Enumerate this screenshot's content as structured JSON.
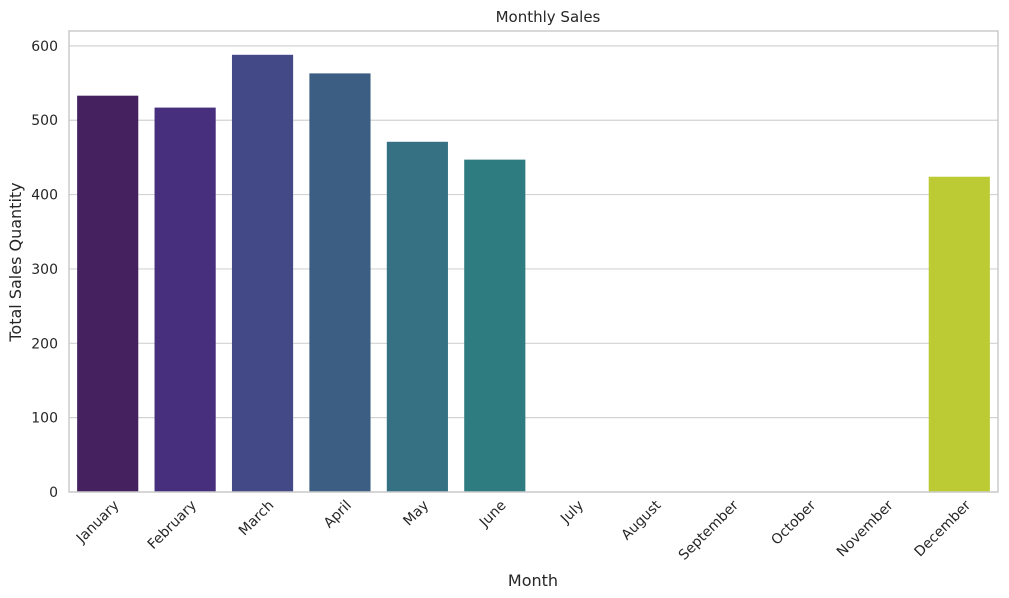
{
  "chart_data": {
    "type": "bar",
    "title": "Monthly Sales",
    "xlabel": "Month",
    "ylabel": "Total Sales Quantity",
    "categories": [
      "January",
      "February",
      "March",
      "April",
      "May",
      "June",
      "July",
      "August",
      "September",
      "October",
      "November",
      "December"
    ],
    "values": [
      533,
      517,
      588,
      563,
      471,
      447,
      0,
      0,
      0,
      0,
      0,
      424
    ],
    "ylim": [
      0,
      620
    ],
    "yticks": [
      "0",
      "100",
      "200",
      "300",
      "400",
      "500",
      "600"
    ],
    "grid": "horizontal",
    "palette": [
      "#46215f",
      "#472f7d",
      "#424986",
      "#3b5e82",
      "#357083",
      "#2e7c80",
      "#26897e",
      "#27a27c",
      "#4cbc6e",
      "#7fcf55",
      "#b1dc38",
      "#bccb34"
    ],
    "axes_edge_color": "#cccccc",
    "grid_color": "#d3d3d3"
  }
}
